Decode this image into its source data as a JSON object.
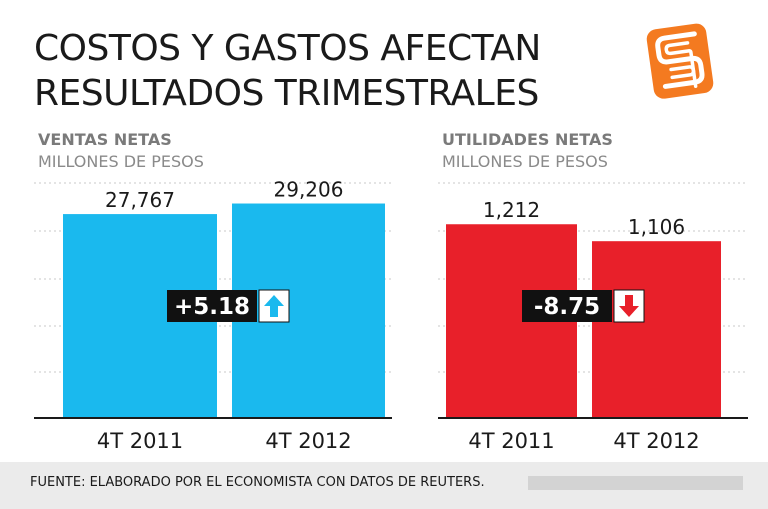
{
  "title": {
    "line1": "COSTOS Y GASTOS AFECTAN",
    "line2": "RESULTADOS TRIMESTRALES"
  },
  "logo": {
    "icon": "el-economista-logo-icon",
    "color": "#f47a20"
  },
  "footer": {
    "source": "FUENTE: ELABORADO POR EL ECONOMISTA CON DATOS DE REUTERS."
  },
  "chart_data": [
    {
      "type": "bar",
      "title": "VENTAS NETAS",
      "subtitle": "MILLONES DE PESOS",
      "categories": [
        "4T 2011",
        "4T 2012"
      ],
      "values": [
        27767,
        29206
      ],
      "value_labels": [
        "27,767",
        "29,206"
      ],
      "ylim": [
        0,
        32000
      ],
      "grid": true,
      "color": "#1ab9ee",
      "change": {
        "label": "+5.18",
        "direction": "up",
        "arrow_color": "#1ab9ee"
      }
    },
    {
      "type": "bar",
      "title": "UTILIDADES NETAS",
      "subtitle": "MILLONES DE PESOS",
      "categories": [
        "4T 2011",
        "4T 2012"
      ],
      "values": [
        1212,
        1106
      ],
      "value_labels": [
        "1,212",
        "1,106"
      ],
      "ylim": [
        0,
        1470
      ],
      "grid": true,
      "color": "#e8202a",
      "change": {
        "label": "-8.75",
        "direction": "down",
        "arrow_color": "#e8202a"
      }
    }
  ]
}
